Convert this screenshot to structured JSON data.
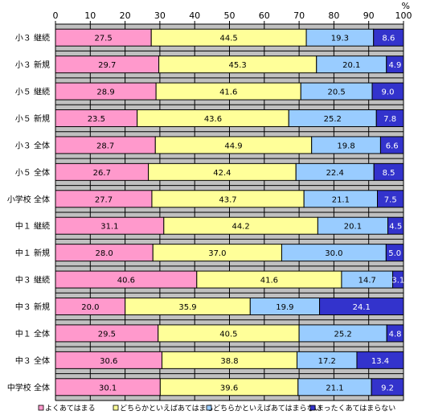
{
  "chart_data": {
    "type": "bar",
    "orientation": "horizontal",
    "stacked": "percent",
    "unit_label": "%",
    "xlim": [
      0,
      100
    ],
    "xticks": [
      "0",
      "10",
      "20",
      "30",
      "40",
      "50",
      "60",
      "70",
      "80",
      "90",
      "100"
    ],
    "categories": [
      "小３ 継続",
      "小３ 新規",
      "小５ 継続",
      "小５ 新規",
      "小３ 全体",
      "小５ 全体",
      "小学校 全体",
      "中１ 継続",
      "中１ 新規",
      "中３ 継続",
      "中３ 新規",
      "中１ 全体",
      "中３ 全体",
      "中学校 全体"
    ],
    "series": [
      {
        "name": "よくあてはまる",
        "color": "#ff99cc",
        "values": [
          27.5,
          29.7,
          28.9,
          23.5,
          28.7,
          26.7,
          27.7,
          31.1,
          28.0,
          40.6,
          20.0,
          29.5,
          30.6,
          30.1
        ],
        "labels": [
          "27.5",
          "29.7",
          "28.9",
          "23.5",
          "28.7",
          "26.7",
          "27.7",
          "31.1",
          "28.0",
          "40.6",
          "20.0",
          "29.5",
          "30.6",
          "30.1"
        ]
      },
      {
        "name": "どちらかといえばあてはまる",
        "color": "#ffff99",
        "values": [
          44.5,
          45.3,
          41.6,
          43.6,
          44.9,
          42.4,
          43.7,
          44.2,
          37.0,
          41.6,
          35.9,
          40.5,
          38.8,
          39.6
        ],
        "labels": [
          "44.5",
          "45.3",
          "41.6",
          "43.6",
          "44.9",
          "42.4",
          "43.7",
          "44.2",
          "37.0",
          "41.6",
          "35.9",
          "40.5",
          "38.8",
          "39.6"
        ]
      },
      {
        "name": "どちらかといえばあてはまらない",
        "color": "#99ccff",
        "values": [
          19.3,
          20.1,
          20.5,
          25.2,
          19.8,
          22.4,
          21.1,
          20.1,
          30.0,
          14.7,
          19.9,
          25.2,
          17.2,
          21.1
        ],
        "labels": [
          "19.3",
          "20.1",
          "20.5",
          "25.2",
          "19.8",
          "22.4",
          "21.1",
          "20.1",
          "30.0",
          "14.7",
          "19.9",
          "25.2",
          "17.2",
          "21.1"
        ]
      },
      {
        "name": "まったくあてはまらない",
        "color": "#3333cc",
        "values": [
          8.6,
          4.9,
          9.0,
          7.8,
          6.6,
          8.5,
          7.5,
          4.5,
          5.0,
          3.1,
          24.1,
          4.8,
          13.4,
          9.2
        ],
        "labels": [
          "8.6",
          "4.9",
          "9.0",
          "7.8",
          "6.6",
          "8.5",
          "7.5",
          "4.5",
          "5.0",
          "3.1",
          "24.1",
          "4.8",
          "13.4",
          "9.2"
        ]
      }
    ],
    "grid": true,
    "legend_position": "bottom"
  }
}
